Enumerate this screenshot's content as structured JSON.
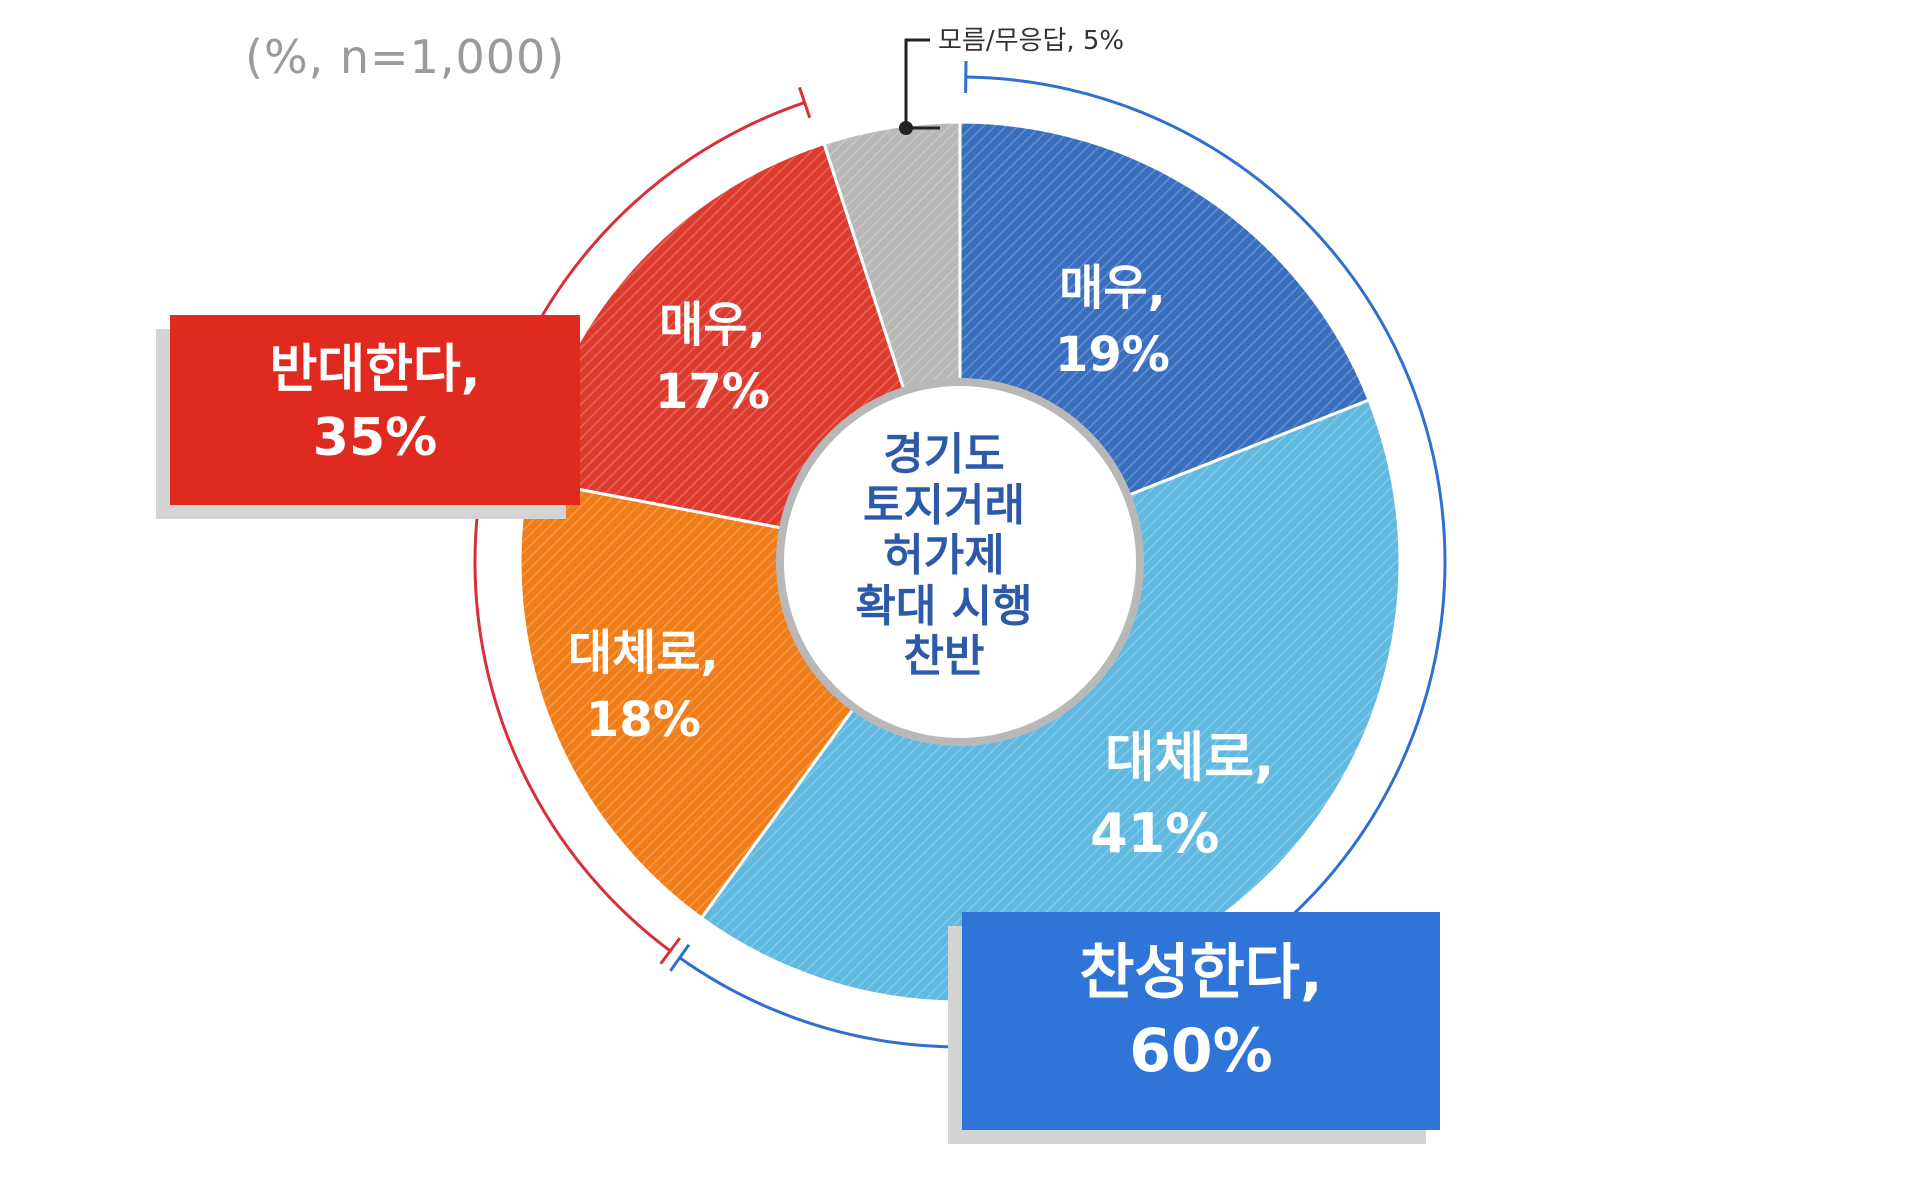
{
  "chart_data": {
    "type": "pie",
    "note": "(%, n=1,000)",
    "center_label": [
      "경기도",
      "토지거래",
      "허가제",
      "확대 시행",
      "찬반"
    ],
    "slices": [
      {
        "label": "매우,",
        "value": 19,
        "display": "19%",
        "color": "#3a6fc0"
      },
      {
        "label": "대체로,",
        "value": 41,
        "display": "41%",
        "color": "#5fb9e0"
      },
      {
        "label": "대체로,",
        "value": 18,
        "display": "18%",
        "color": "#f07d18"
      },
      {
        "label": "매우,",
        "value": 17,
        "display": "17%",
        "color": "#de3b2f"
      },
      {
        "label": "모름/무응답,",
        "value": 5,
        "display": "5%",
        "color": "#b8b8b8"
      }
    ],
    "groups": [
      {
        "label": "찬성한다,",
        "value": 60,
        "display": "60%",
        "color": "#2f75d8"
      },
      {
        "label": "반대한다,",
        "value": 35,
        "display": "35%",
        "color": "#e02a20"
      }
    ]
  }
}
